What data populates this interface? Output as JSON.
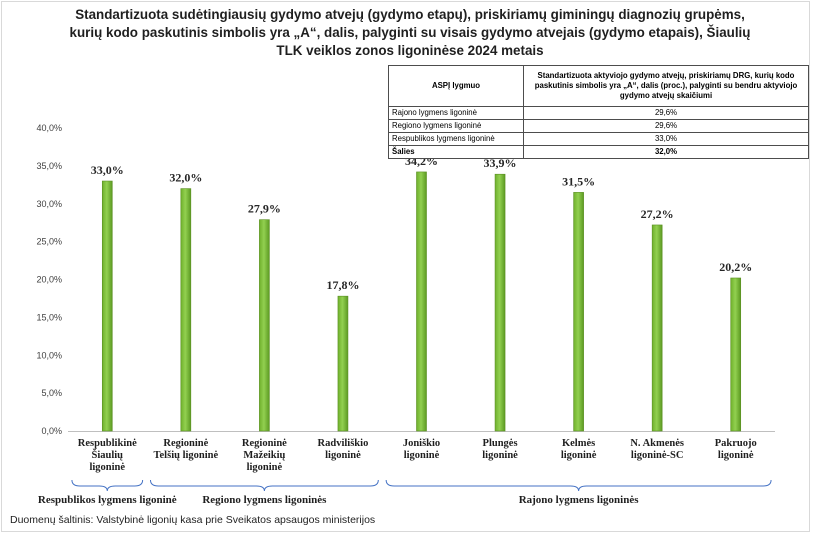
{
  "title": "Standartizuota sudėtingiausių gydymo atvejų (gydymo etapų), priskiriamų giminingų diagnozių grupėms, kurių kodo paskutinis simbolis yra „A“, dalis, palyginti su visais gydymo atvejais (gydymo etapais), Šiaulių TLK veiklos zonos ligoninėse 2024 metais",
  "table": {
    "header_level": "ASPĮ lygmuo",
    "header_value": "Standartizuota aktyviojo gydymo atvejų, priskiriamų DRG, kurių kodo paskutinis simbolis yra „A“, dalis (proc.), palyginti su bendru aktyviojo gydymo atvejų skaičiumi",
    "rows": [
      {
        "level": "Rajono lygmens ligoninė",
        "value": "29,6%"
      },
      {
        "level": "Regiono lygmens ligoninė",
        "value": "29,6%"
      },
      {
        "level": "Respublikos lygmens ligoninė",
        "value": "33,0%"
      },
      {
        "level": "Šalies",
        "value": "32,0%"
      }
    ]
  },
  "chart_data": {
    "type": "bar",
    "categories": [
      [
        "Respublikinė",
        "Šiaulių",
        "ligoninė"
      ],
      [
        "Regioninė",
        "Telšių ligoninė"
      ],
      [
        "Regioninė",
        "Mažeikių",
        "ligoninė"
      ],
      [
        "Radviliškio",
        "ligoninė"
      ],
      [
        "Joniškio",
        "ligoninė"
      ],
      [
        "Plungės",
        "ligoninė"
      ],
      [
        "Kelmės",
        "ligoninė"
      ],
      [
        "N. Akmenės",
        "ligoninė-SC"
      ],
      [
        "Pakruojo",
        "ligoninė"
      ]
    ],
    "values": [
      33.0,
      32.0,
      27.9,
      17.8,
      34.2,
      33.9,
      31.5,
      27.2,
      20.2
    ],
    "value_labels": [
      "33,0%",
      "32,0%",
      "27,9%",
      "17,8%",
      "34,2%",
      "33,9%",
      "31,5%",
      "27,2%",
      "20,2%"
    ],
    "ylim": [
      0,
      40
    ],
    "yticks": [
      "0,0%",
      "5,0%",
      "10,0%",
      "15,0%",
      "20,0%",
      "25,0%",
      "30,0%",
      "35,0%",
      "40,0%"
    ],
    "grid": false,
    "bar_color": "#92d050",
    "groups": [
      {
        "label": "Respublikos lygmens ligoninė",
        "from": 0,
        "to": 0
      },
      {
        "label": "Regiono lygmens ligoninės",
        "from": 1,
        "to": 3
      },
      {
        "label": "Rajono lygmens ligoninės",
        "from": 4,
        "to": 8
      }
    ]
  },
  "source": "Duomenų šaltinis: Valstybinė ligonių kasa prie Sveikatos apsaugos ministerijos"
}
